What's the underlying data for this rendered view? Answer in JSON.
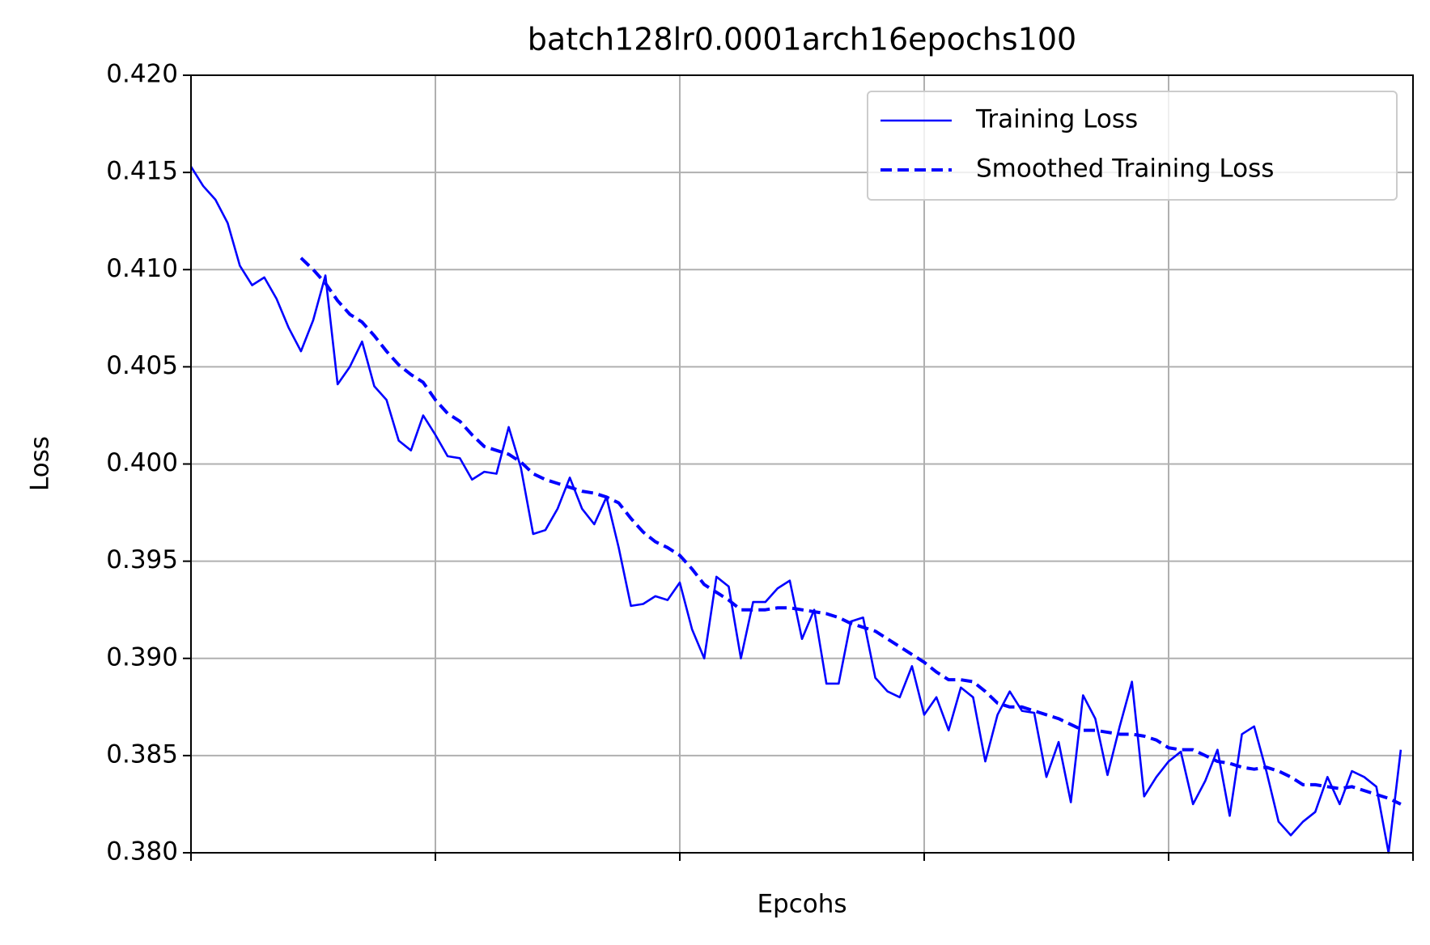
{
  "chart_data": {
    "type": "line",
    "title": "batch128lr0.0001arch16epochs100",
    "x_label": "Epcohs",
    "y_label": "Loss",
    "x": [
      0,
      1,
      2,
      3,
      4,
      5,
      6,
      7,
      8,
      9,
      10,
      11,
      12,
      13,
      14,
      15,
      16,
      17,
      18,
      19,
      20,
      21,
      22,
      23,
      24,
      25,
      26,
      27,
      28,
      29,
      30,
      31,
      32,
      33,
      34,
      35,
      36,
      37,
      38,
      39,
      40,
      41,
      42,
      43,
      44,
      45,
      46,
      47,
      48,
      49,
      50,
      51,
      52,
      53,
      54,
      55,
      56,
      57,
      58,
      59,
      60,
      61,
      62,
      63,
      64,
      65,
      66,
      67,
      68,
      69,
      70,
      71,
      72,
      73,
      74,
      75,
      76,
      77,
      78,
      79,
      80,
      81,
      82,
      83,
      84,
      85,
      86,
      87,
      88,
      89,
      90,
      91,
      92,
      93,
      94,
      95,
      96,
      97,
      98,
      99
    ],
    "series": [
      {
        "name": "Training Loss",
        "color": "#0000ff",
        "linestyle": "solid",
        "values": [
          0.4153,
          0.4143,
          0.4136,
          0.4124,
          0.4102,
          0.4092,
          0.4096,
          0.4085,
          0.407,
          0.4058,
          0.4074,
          0.4097,
          0.4041,
          0.405,
          0.4063,
          0.404,
          0.4033,
          0.4012,
          0.4007,
          0.4025,
          0.4015,
          0.4004,
          0.4003,
          0.3992,
          0.3996,
          0.3995,
          0.4019,
          0.3998,
          0.3964,
          0.3966,
          0.3977,
          0.3993,
          0.3977,
          0.3969,
          0.3983,
          0.3957,
          0.3927,
          0.3928,
          0.3932,
          0.393,
          0.3939,
          0.3915,
          0.39,
          0.3942,
          0.3937,
          0.39,
          0.3929,
          0.3929,
          0.3936,
          0.394,
          0.391,
          0.3925,
          0.3887,
          0.3887,
          0.3919,
          0.3921,
          0.389,
          0.3883,
          0.388,
          0.3896,
          0.3871,
          0.388,
          0.3863,
          0.3885,
          0.388,
          0.3847,
          0.3871,
          0.3883,
          0.3873,
          0.3872,
          0.3839,
          0.3857,
          0.3826,
          0.3881,
          0.3869,
          0.384,
          0.3865,
          0.3888,
          0.3829,
          0.3839,
          0.3847,
          0.3852,
          0.3825,
          0.3837,
          0.3853,
          0.3819,
          0.3861,
          0.3865,
          0.3842,
          0.3816,
          0.3809,
          0.3816,
          0.3821,
          0.3839,
          0.3825,
          0.3842,
          0.3839,
          0.3834,
          0.38,
          0.3853
        ]
      },
      {
        "name": "Smoothed Training Loss",
        "color": "#0000ff",
        "linestyle": "dashed",
        "values": [
          null,
          null,
          null,
          null,
          null,
          null,
          null,
          null,
          null,
          0.4106,
          0.41,
          0.4093,
          0.4084,
          0.4077,
          0.4073,
          0.4066,
          0.4058,
          0.4051,
          0.4046,
          0.4042,
          0.4033,
          0.4026,
          0.4022,
          0.4015,
          0.4009,
          0.4007,
          0.4005,
          0.4001,
          0.3995,
          0.3992,
          0.399,
          0.3988,
          0.3986,
          0.3985,
          0.3983,
          0.398,
          0.3972,
          0.3965,
          0.396,
          0.3957,
          0.3953,
          0.3946,
          0.3938,
          0.3934,
          0.393,
          0.3925,
          0.3925,
          0.3925,
          0.3926,
          0.3926,
          0.3925,
          0.3924,
          0.3923,
          0.3921,
          0.3918,
          0.3916,
          0.3914,
          0.391,
          0.3906,
          0.3902,
          0.3898,
          0.3893,
          0.3889,
          0.3889,
          0.3888,
          0.3883,
          0.3877,
          0.3875,
          0.3875,
          0.3873,
          0.3871,
          0.3869,
          0.3866,
          0.3863,
          0.3863,
          0.3862,
          0.3861,
          0.3861,
          0.386,
          0.3858,
          0.3854,
          0.3853,
          0.3853,
          0.385,
          0.3847,
          0.3846,
          0.3844,
          0.3843,
          0.3844,
          0.3842,
          0.3839,
          0.3835,
          0.3835,
          0.3834,
          0.3833,
          0.3834,
          0.3832,
          0.383,
          0.3828,
          0.3825
        ]
      }
    ],
    "xlim": [
      0,
      100
    ],
    "xticks": [
      0,
      20,
      40,
      60,
      80,
      100
    ],
    "ylim": [
      0.38,
      0.42
    ],
    "yticks": [
      {
        "value": 0.38,
        "label": "0.380"
      },
      0.385,
      {
        "value": 0.39,
        "label": "0.390"
      },
      0.395,
      {
        "value": 0.4,
        "label": "0.400"
      },
      0.405,
      {
        "value": 0.41,
        "label": "0.410"
      },
      0.415,
      {
        "value": 0.42,
        "label": "0.420"
      }
    ],
    "grid": true,
    "legend": "upper right"
  }
}
